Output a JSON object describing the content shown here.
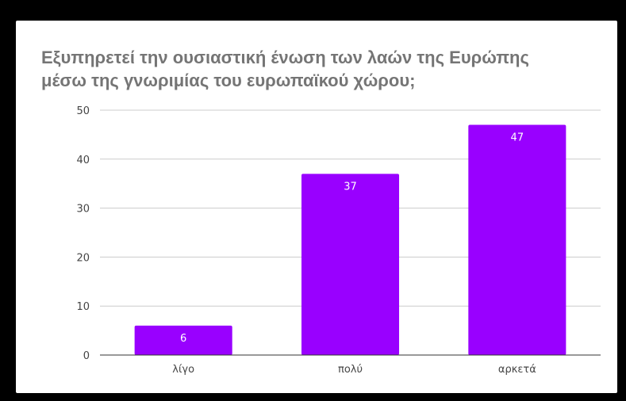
{
  "chart_data": {
    "type": "bar",
    "title_lines": [
      "Εξυπηρετεί την ουσιαστική ένωση των λαών της Ευρώπης",
      "μέσω της γνωριμίας του ευρωπαϊκού χώρου;"
    ],
    "categories": [
      "λίγο",
      "πολύ",
      "αρκετά"
    ],
    "values": [
      6,
      37,
      47
    ],
    "data_labels": [
      "6",
      "37",
      "47"
    ],
    "ylim": [
      0,
      50
    ],
    "yticks": [
      0,
      10,
      20,
      30,
      40,
      50
    ],
    "grid": true,
    "legend": "none",
    "colors": {
      "bar": "#9900ff",
      "grid": "#cccccc",
      "axis": "#333333",
      "title": "#757575",
      "background": "#ffffff",
      "frame": "#000000"
    }
  }
}
